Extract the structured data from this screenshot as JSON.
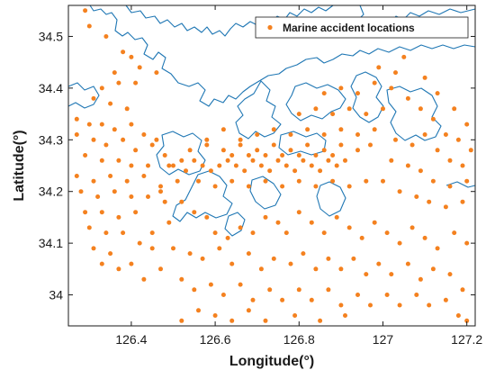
{
  "chart_data": {
    "type": "scatter",
    "title": "",
    "xlabel": "Longitude(°)",
    "ylabel": "Latitude(°)",
    "xlim": [
      126.25,
      127.22
    ],
    "ylim": [
      33.94,
      34.56
    ],
    "xticks": [
      126.4,
      126.6,
      126.8,
      127,
      127.2
    ],
    "xtick_labels": [
      "126.4",
      "126.6",
      "126.8",
      "127",
      "127.2"
    ],
    "yticks": [
      34,
      34.1,
      34.2,
      34.3,
      34.4,
      34.5
    ],
    "ytick_labels": [
      "34",
      "34.1",
      "34.2",
      "34.3",
      "34.4",
      "34.5"
    ],
    "grid": false,
    "legend_position": "top-right",
    "colors": {
      "points": "#f4811f",
      "coastline": "#1f77b4",
      "axes": "#1a1a1a"
    },
    "series": [
      {
        "name": "Marine accident locations",
        "points": [
          [
            126.29,
            34.55
          ],
          [
            126.3,
            34.52
          ],
          [
            126.34,
            34.5
          ],
          [
            126.38,
            34.47
          ],
          [
            126.4,
            34.46
          ],
          [
            126.42,
            34.44
          ],
          [
            126.46,
            34.43
          ],
          [
            126.36,
            34.43
          ],
          [
            126.37,
            34.41
          ],
          [
            126.41,
            34.41
          ],
          [
            126.33,
            34.4
          ],
          [
            126.31,
            34.38
          ],
          [
            126.35,
            34.37
          ],
          [
            126.39,
            34.36
          ],
          [
            126.27,
            34.34
          ],
          [
            126.3,
            34.33
          ],
          [
            126.33,
            34.33
          ],
          [
            126.36,
            34.32
          ],
          [
            126.4,
            34.33
          ],
          [
            126.43,
            34.31
          ],
          [
            126.46,
            34.3
          ],
          [
            126.27,
            34.31
          ],
          [
            126.31,
            34.3
          ],
          [
            126.34,
            34.29
          ],
          [
            126.38,
            34.3
          ],
          [
            126.41,
            34.28
          ],
          [
            126.45,
            34.29
          ],
          [
            126.48,
            34.27
          ],
          [
            126.29,
            34.27
          ],
          [
            126.33,
            34.26
          ],
          [
            126.37,
            34.26
          ],
          [
            126.4,
            34.25
          ],
          [
            126.44,
            34.25
          ],
          [
            126.49,
            34.25
          ],
          [
            126.52,
            34.26
          ],
          [
            126.27,
            34.23
          ],
          [
            126.31,
            34.22
          ],
          [
            126.35,
            34.23
          ],
          [
            126.39,
            34.22
          ],
          [
            126.43,
            34.23
          ],
          [
            126.47,
            34.21
          ],
          [
            126.51,
            34.22
          ],
          [
            126.28,
            34.2
          ],
          [
            126.32,
            34.19
          ],
          [
            126.36,
            34.2
          ],
          [
            126.4,
            34.19
          ],
          [
            126.44,
            34.19
          ],
          [
            126.48,
            34.18
          ],
          [
            126.29,
            34.16
          ],
          [
            126.33,
            34.16
          ],
          [
            126.37,
            34.15
          ],
          [
            126.41,
            34.16
          ],
          [
            126.3,
            34.13
          ],
          [
            126.34,
            34.12
          ],
          [
            126.38,
            34.12
          ],
          [
            126.31,
            34.09
          ],
          [
            126.35,
            34.08
          ],
          [
            126.42,
            34.1
          ],
          [
            126.45,
            34.09
          ],
          [
            126.4,
            34.06
          ],
          [
            126.37,
            34.05
          ],
          [
            126.33,
            34.06
          ],
          [
            126.5,
            34.25
          ],
          [
            126.53,
            34.24
          ],
          [
            126.55,
            34.26
          ],
          [
            126.57,
            34.25
          ],
          [
            126.59,
            34.24
          ],
          [
            126.61,
            34.25
          ],
          [
            126.63,
            34.26
          ],
          [
            126.65,
            34.25
          ],
          [
            126.67,
            34.24
          ],
          [
            126.69,
            34.26
          ],
          [
            126.71,
            34.25
          ],
          [
            126.73,
            34.24
          ],
          [
            126.75,
            34.26
          ],
          [
            126.77,
            34.25
          ],
          [
            126.79,
            34.24
          ],
          [
            126.81,
            34.26
          ],
          [
            126.83,
            34.25
          ],
          [
            126.85,
            34.24
          ],
          [
            126.87,
            34.26
          ],
          [
            126.89,
            34.25
          ],
          [
            126.91,
            34.26
          ],
          [
            126.54,
            34.28
          ],
          [
            126.58,
            34.29
          ],
          [
            126.62,
            34.28
          ],
          [
            126.66,
            34.29
          ],
          [
            126.7,
            34.28
          ],
          [
            126.74,
            34.29
          ],
          [
            126.78,
            34.28
          ],
          [
            126.82,
            34.29
          ],
          [
            126.86,
            34.28
          ],
          [
            126.9,
            34.29
          ],
          [
            126.94,
            34.28
          ],
          [
            126.97,
            34.29
          ],
          [
            126.56,
            34.22
          ],
          [
            126.6,
            34.21
          ],
          [
            126.64,
            34.22
          ],
          [
            126.68,
            34.21
          ],
          [
            126.72,
            34.22
          ],
          [
            126.76,
            34.21
          ],
          [
            126.8,
            34.22
          ],
          [
            126.84,
            34.21
          ],
          [
            126.88,
            34.22
          ],
          [
            126.92,
            34.21
          ],
          [
            126.96,
            34.22
          ],
          [
            126.78,
            34.31
          ],
          [
            126.82,
            34.32
          ],
          [
            126.86,
            34.31
          ],
          [
            126.9,
            34.32
          ],
          [
            126.94,
            34.31
          ],
          [
            126.98,
            34.32
          ],
          [
            126.8,
            34.35
          ],
          [
            126.84,
            34.36
          ],
          [
            126.88,
            34.35
          ],
          [
            126.92,
            34.36
          ],
          [
            126.96,
            34.35
          ],
          [
            127,
            34.36
          ],
          [
            126.86,
            34.39
          ],
          [
            126.9,
            34.4
          ],
          [
            126.94,
            34.39
          ],
          [
            126.98,
            34.41
          ],
          [
            127.02,
            34.4
          ],
          [
            126.99,
            34.44
          ],
          [
            127.03,
            34.43
          ],
          [
            127.06,
            34.38
          ],
          [
            127.09,
            34.36
          ],
          [
            127.12,
            34.34
          ],
          [
            127.15,
            34.31
          ],
          [
            127.18,
            34.3
          ],
          [
            127.21,
            34.28
          ],
          [
            127.03,
            34.3
          ],
          [
            127.07,
            34.29
          ],
          [
            127.1,
            34.31
          ],
          [
            127.13,
            34.28
          ],
          [
            127.16,
            34.26
          ],
          [
            127.19,
            34.25
          ],
          [
            127.02,
            34.26
          ],
          [
            127.06,
            34.25
          ],
          [
            127.09,
            34.24
          ],
          [
            127.12,
            34.22
          ],
          [
            127.16,
            34.21
          ],
          [
            127.2,
            34.22
          ],
          [
            127,
            34.22
          ],
          [
            127.04,
            34.2
          ],
          [
            127.08,
            34.19
          ],
          [
            127.11,
            34.18
          ],
          [
            127.15,
            34.17
          ],
          [
            127.19,
            34.18
          ],
          [
            126.52,
            34.18
          ],
          [
            126.55,
            34.16
          ],
          [
            126.58,
            34.15
          ],
          [
            126.6,
            34.12
          ],
          [
            126.63,
            34.11
          ],
          [
            126.66,
            34.13
          ],
          [
            126.69,
            34.12
          ],
          [
            126.72,
            34.15
          ],
          [
            126.75,
            34.14
          ],
          [
            126.77,
            34.12
          ],
          [
            126.8,
            34.16
          ],
          [
            126.83,
            34.14
          ],
          [
            126.86,
            34.12
          ],
          [
            126.89,
            34.15
          ],
          [
            126.92,
            34.13
          ],
          [
            126.95,
            34.11
          ],
          [
            126.98,
            34.14
          ],
          [
            127.01,
            34.12
          ],
          [
            127.04,
            34.1
          ],
          [
            127.07,
            34.13
          ],
          [
            127.1,
            34.11
          ],
          [
            127.13,
            34.09
          ],
          [
            127.17,
            34.12
          ],
          [
            127.2,
            34.1
          ],
          [
            126.5,
            34.09
          ],
          [
            126.54,
            34.08
          ],
          [
            126.57,
            34.07
          ],
          [
            126.61,
            34.09
          ],
          [
            126.64,
            34.06
          ],
          [
            126.68,
            34.08
          ],
          [
            126.71,
            34.05
          ],
          [
            126.74,
            34.07
          ],
          [
            126.78,
            34.06
          ],
          [
            126.81,
            34.08
          ],
          [
            126.84,
            34.05
          ],
          [
            126.87,
            34.07
          ],
          [
            126.9,
            34.05
          ],
          [
            126.93,
            34.07
          ],
          [
            126.96,
            34.04
          ],
          [
            126.99,
            34.06
          ],
          [
            127.02,
            34.04
          ],
          [
            127.06,
            34.06
          ],
          [
            127.09,
            34.03
          ],
          [
            127.12,
            34.05
          ],
          [
            127.16,
            34.04
          ],
          [
            126.52,
            34.03
          ],
          [
            126.55,
            34.01
          ],
          [
            126.59,
            34.02
          ],
          [
            126.62,
            34
          ],
          [
            126.66,
            34.02
          ],
          [
            126.69,
            33.99
          ],
          [
            126.73,
            34.01
          ],
          [
            126.76,
            33.99
          ],
          [
            126.8,
            34.01
          ],
          [
            126.83,
            33.99
          ],
          [
            126.87,
            34.01
          ],
          [
            126.9,
            33.98
          ],
          [
            126.94,
            34
          ],
          [
            126.97,
            33.98
          ],
          [
            127.01,
            34
          ],
          [
            127.04,
            33.98
          ],
          [
            127.08,
            34
          ],
          [
            127.11,
            33.98
          ],
          [
            127.15,
            33.99
          ],
          [
            127.19,
            34.01
          ],
          [
            126.52,
            33.95
          ],
          [
            126.56,
            33.97
          ],
          [
            126.6,
            33.96
          ],
          [
            126.64,
            33.95
          ],
          [
            126.68,
            33.97
          ],
          [
            126.72,
            33.95
          ],
          [
            126.79,
            33.96
          ],
          [
            126.85,
            33.95
          ],
          [
            126.91,
            33.96
          ],
          [
            127.18,
            33.96
          ],
          [
            127.2,
            33.95
          ],
          [
            126.47,
            34.2
          ],
          [
            126.49,
            34.14
          ],
          [
            126.45,
            34.12
          ],
          [
            126.47,
            34.05
          ],
          [
            126.43,
            34.03
          ],
          [
            126.58,
            34.3
          ],
          [
            126.62,
            34.32
          ],
          [
            126.66,
            34.3
          ],
          [
            126.7,
            34.31
          ],
          [
            126.74,
            34.32
          ],
          [
            126.64,
            34.27
          ],
          [
            126.68,
            34.27
          ],
          [
            126.72,
            34.27
          ],
          [
            126.76,
            34.27
          ],
          [
            126.8,
            34.27
          ],
          [
            126.84,
            34.27
          ],
          [
            126.88,
            34.27
          ],
          [
            127.1,
            34.42
          ],
          [
            127.05,
            34.46
          ],
          [
            127.13,
            34.39
          ],
          [
            127.17,
            34.36
          ],
          [
            127.2,
            34.33
          ]
        ]
      }
    ]
  }
}
